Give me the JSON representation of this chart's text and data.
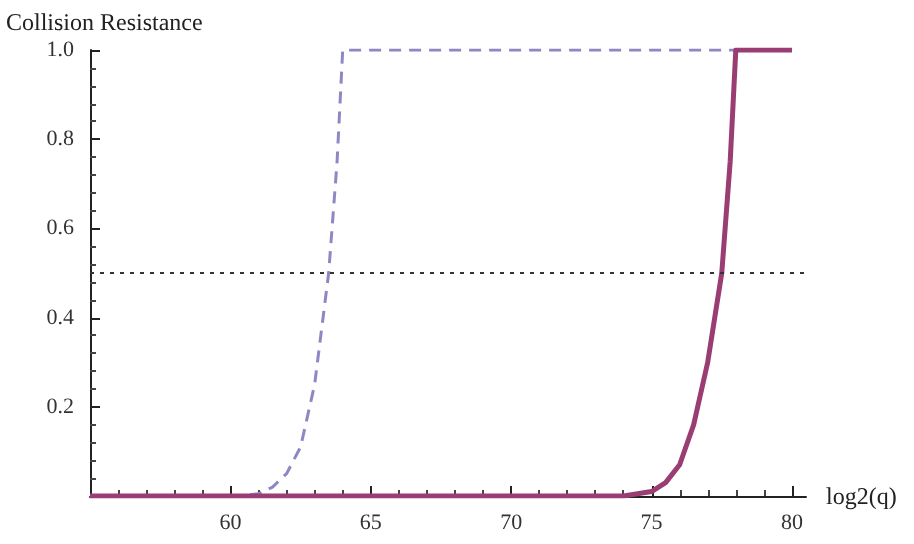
{
  "chart_data": {
    "type": "line",
    "xlabel": "log2(q)",
    "ylabel": "Collision Resistance",
    "xlim": [
      55,
      80.5
    ],
    "xticks": [
      60,
      65,
      70,
      75,
      80
    ],
    "ylim": [
      0,
      1
    ],
    "yticks": [
      {
        "value": 0,
        "label": null
      },
      0.2,
      0.4,
      0.6,
      0.8,
      {
        "value": 1,
        "label": "1.0"
      }
    ],
    "grid": false,
    "marker": "none",
    "series": [
      {
        "color": "#8c88c4",
        "line_style": "dashed",
        "x": [
          55,
          60,
          60.5,
          61,
          61.5,
          62,
          62.5,
          63,
          63.5,
          63.8,
          64,
          80
        ],
        "values": [
          0,
          0,
          0.001,
          0.005,
          0.02,
          0.05,
          0.11,
          0.25,
          0.5,
          0.75,
          1,
          1
        ]
      },
      {
        "color": "#993d73",
        "line_style": "solid",
        "x": [
          55,
          74,
          75,
          75.5,
          76,
          76.5,
          77,
          77.5,
          77.8,
          78,
          80
        ],
        "values": [
          0,
          0,
          0.01,
          0.03,
          0.07,
          0.16,
          0.3,
          0.5,
          0.75,
          1,
          1
        ]
      }
    ],
    "ref_lines": [
      {
        "axis": "y",
        "value": 0.5,
        "color": "#333333",
        "line_style": "dotted"
      }
    ]
  }
}
